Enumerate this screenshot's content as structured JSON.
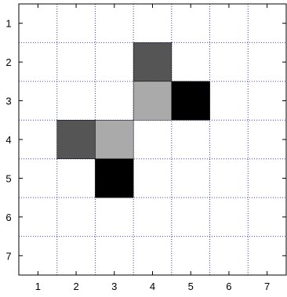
{
  "chart_data": {
    "type": "heatmap",
    "title": "",
    "xlabel": "",
    "ylabel": "",
    "x_categories": [
      "1",
      "2",
      "3",
      "4",
      "5",
      "6",
      "7"
    ],
    "y_categories": [
      "1",
      "2",
      "3",
      "4",
      "5",
      "6",
      "7"
    ],
    "xlim": [
      0.5,
      7.5
    ],
    "ylim": [
      7.5,
      0.5
    ],
    "y_axis_inverted": true,
    "grid": true,
    "grid_style": "dotted",
    "grid_color": "#3c3cc8",
    "background_color": "#ffffff",
    "cells": [
      {
        "x": 4,
        "y": 2,
        "color": "#555555"
      },
      {
        "x": 4,
        "y": 3,
        "color": "#aaaaaa"
      },
      {
        "x": 5,
        "y": 3,
        "color": "#000000"
      },
      {
        "x": 2,
        "y": 4,
        "color": "#555555"
      },
      {
        "x": 3,
        "y": 4,
        "color": "#aaaaaa"
      },
      {
        "x": 3,
        "y": 5,
        "color": "#000000"
      }
    ]
  }
}
